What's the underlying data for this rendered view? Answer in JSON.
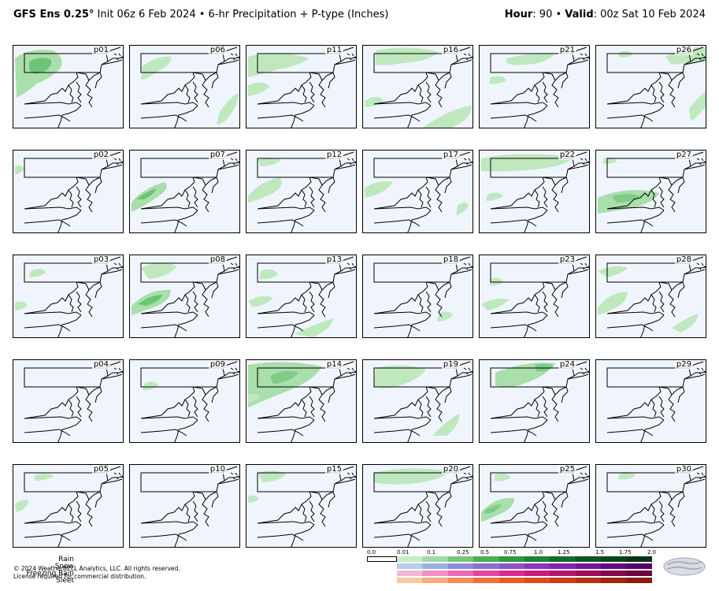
{
  "header": {
    "model": "GFS Ens 0.25",
    "degree": "°",
    "init": " Init 06z 6 Feb 2024",
    "bullet": " • ",
    "product": "6-hr Precipitation + P-type (Inches)",
    "hour_label": "Hour",
    "hour_value": ": 90",
    "valid_label": "Valid",
    "valid_value": ": 00z Sat 10 Feb 2024",
    "sep": " • "
  },
  "members": [
    "p01",
    "p06",
    "p11",
    "p16",
    "p21",
    "p26",
    "p02",
    "p07",
    "p12",
    "p17",
    "p22",
    "p27",
    "p03",
    "p08",
    "p13",
    "p18",
    "p23",
    "p28",
    "p04",
    "p09",
    "p14",
    "p19",
    "p24",
    "p29",
    "p05",
    "p10",
    "p15",
    "p20",
    "p25",
    "p30"
  ],
  "legend": {
    "ticks": [
      "0.0",
      "0.01",
      "0.1",
      "0.25",
      "0.5",
      "0.75",
      "1.0",
      "1.25",
      "1.5",
      "1.75",
      "2.0"
    ],
    "rows": [
      {
        "name": "Rain",
        "colors": [
          "#c6ecc6",
          "#a0dba0",
          "#77c87a",
          "#4caf50",
          "#2e9a3e",
          "#1e8234",
          "#136b2a",
          "#0b5621",
          "#06451a",
          "#023312"
        ]
      },
      {
        "name": "Snow",
        "colors": [
          "#b3cfe8",
          "#99b3e0",
          "#8c8cd9",
          "#8a6fd1",
          "#8c52c8",
          "#8a36bf",
          "#8420b0",
          "#76129c",
          "#640a85",
          "#52046e"
        ]
      },
      {
        "name": "Freezing Rain",
        "colors": [
          "#f4b6d9",
          "#ef8fc8",
          "#ea6ab6",
          "#e346a3",
          "#da2a90",
          "#c91d7f",
          "#b4146f",
          "#9c0c5f",
          "#85064f",
          "#6d0240"
        ]
      },
      {
        "name": "Sleet",
        "colors": [
          "#fbc8a4",
          "#f8a97f",
          "#f48c5c",
          "#ef7040",
          "#e85a2c",
          "#dc4a20",
          "#cc3c18",
          "#b83012",
          "#a2260c",
          "#8c1c08"
        ]
      }
    ]
  },
  "footer": {
    "line1": "© 2024 WeatherBELL Analytics, LLC. All rights reserved.",
    "line2": "License required for commercial distribution."
  },
  "logo_text": "WeatherBELL",
  "colors": {
    "map_bg": "#f0f5fd",
    "precip_light": "#c6ecc6",
    "precip_mid": "#8fd49a",
    "precip_dark": "#5bbf6b"
  }
}
